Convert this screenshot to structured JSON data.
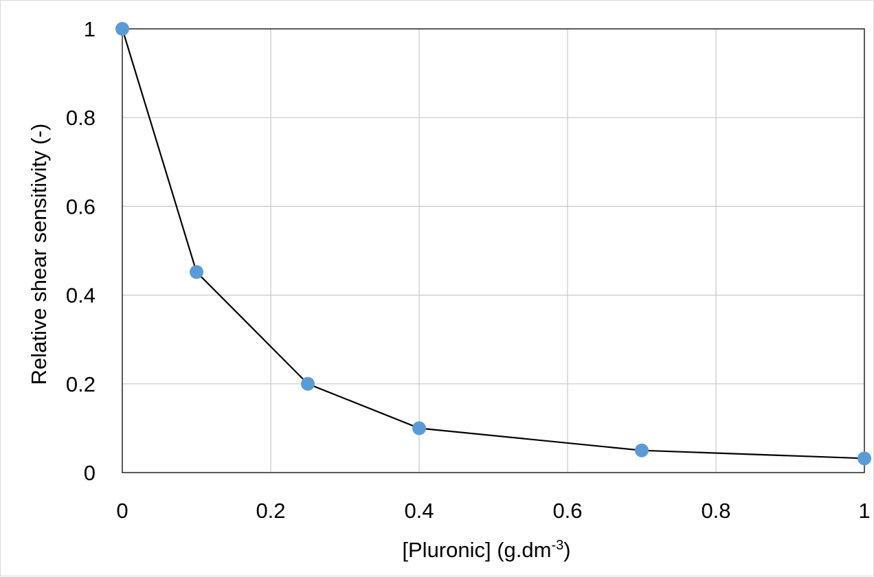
{
  "chart_data": {
    "type": "line",
    "title": "",
    "xlabel": "[Pluronic] (g.dm",
    "xlabel_superscript": "-3",
    "xlabel_suffix": ")",
    "ylabel": "Relative shear sensitivity (-)",
    "xlim": [
      0,
      1
    ],
    "ylim": [
      0,
      1
    ],
    "x_ticks": [
      0,
      0.2,
      0.4,
      0.6,
      0.8,
      1
    ],
    "y_ticks": [
      0,
      0.2,
      0.4,
      0.6,
      0.8,
      1
    ],
    "x_tick_labels": [
      "0",
      "0.2",
      "0.4",
      "0.6",
      "0.8",
      "1"
    ],
    "y_tick_labels": [
      "0",
      "0.2",
      "0.4",
      "0.6",
      "0.8",
      "1"
    ],
    "grid": true,
    "legend": "none",
    "series": [
      {
        "x": [
          0,
          0.1,
          0.25,
          0.4,
          0.7,
          1.0
        ],
        "y": [
          1.0,
          0.452,
          0.2,
          0.1,
          0.05,
          0.032
        ],
        "line_color": "#000000",
        "marker_color": "#5b9bd5"
      }
    ]
  }
}
